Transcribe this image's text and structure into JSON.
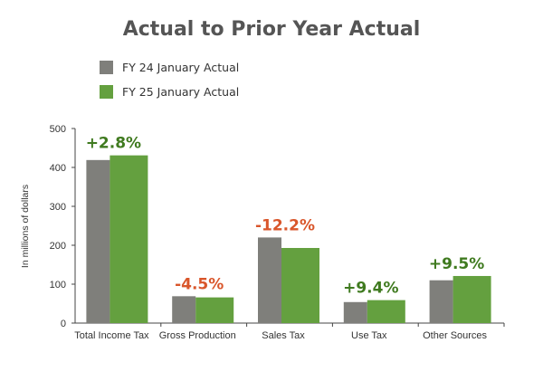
{
  "chart_data": {
    "type": "bar",
    "title": "Actual to Prior Year Actual",
    "ylabel": "In millions of dollars",
    "xlabel": "",
    "ylim": [
      0,
      500
    ],
    "yticks": [
      0,
      100,
      200,
      300,
      400,
      500
    ],
    "categories": [
      "Total Income Tax",
      "Gross Production",
      "Sales Tax",
      "Use Tax",
      "Other Sources"
    ],
    "series": [
      {
        "name": "FY 24 January Actual",
        "color": "#7f7f7b",
        "values": [
          419,
          69,
          220,
          54,
          110
        ]
      },
      {
        "name": "FY 25 January Actual",
        "color": "#64a03f",
        "values": [
          431,
          66,
          193,
          59,
          121
        ]
      }
    ],
    "annotations": [
      "+2.8%",
      "-4.5%",
      "-12.2%",
      "+9.4%",
      "+9.5%"
    ],
    "annotation_colors": [
      "#3f7a1f",
      "#d9562b",
      "#d9562b",
      "#3f7a1f",
      "#3f7a1f"
    ],
    "legend_position": "top-left",
    "grid": false
  }
}
